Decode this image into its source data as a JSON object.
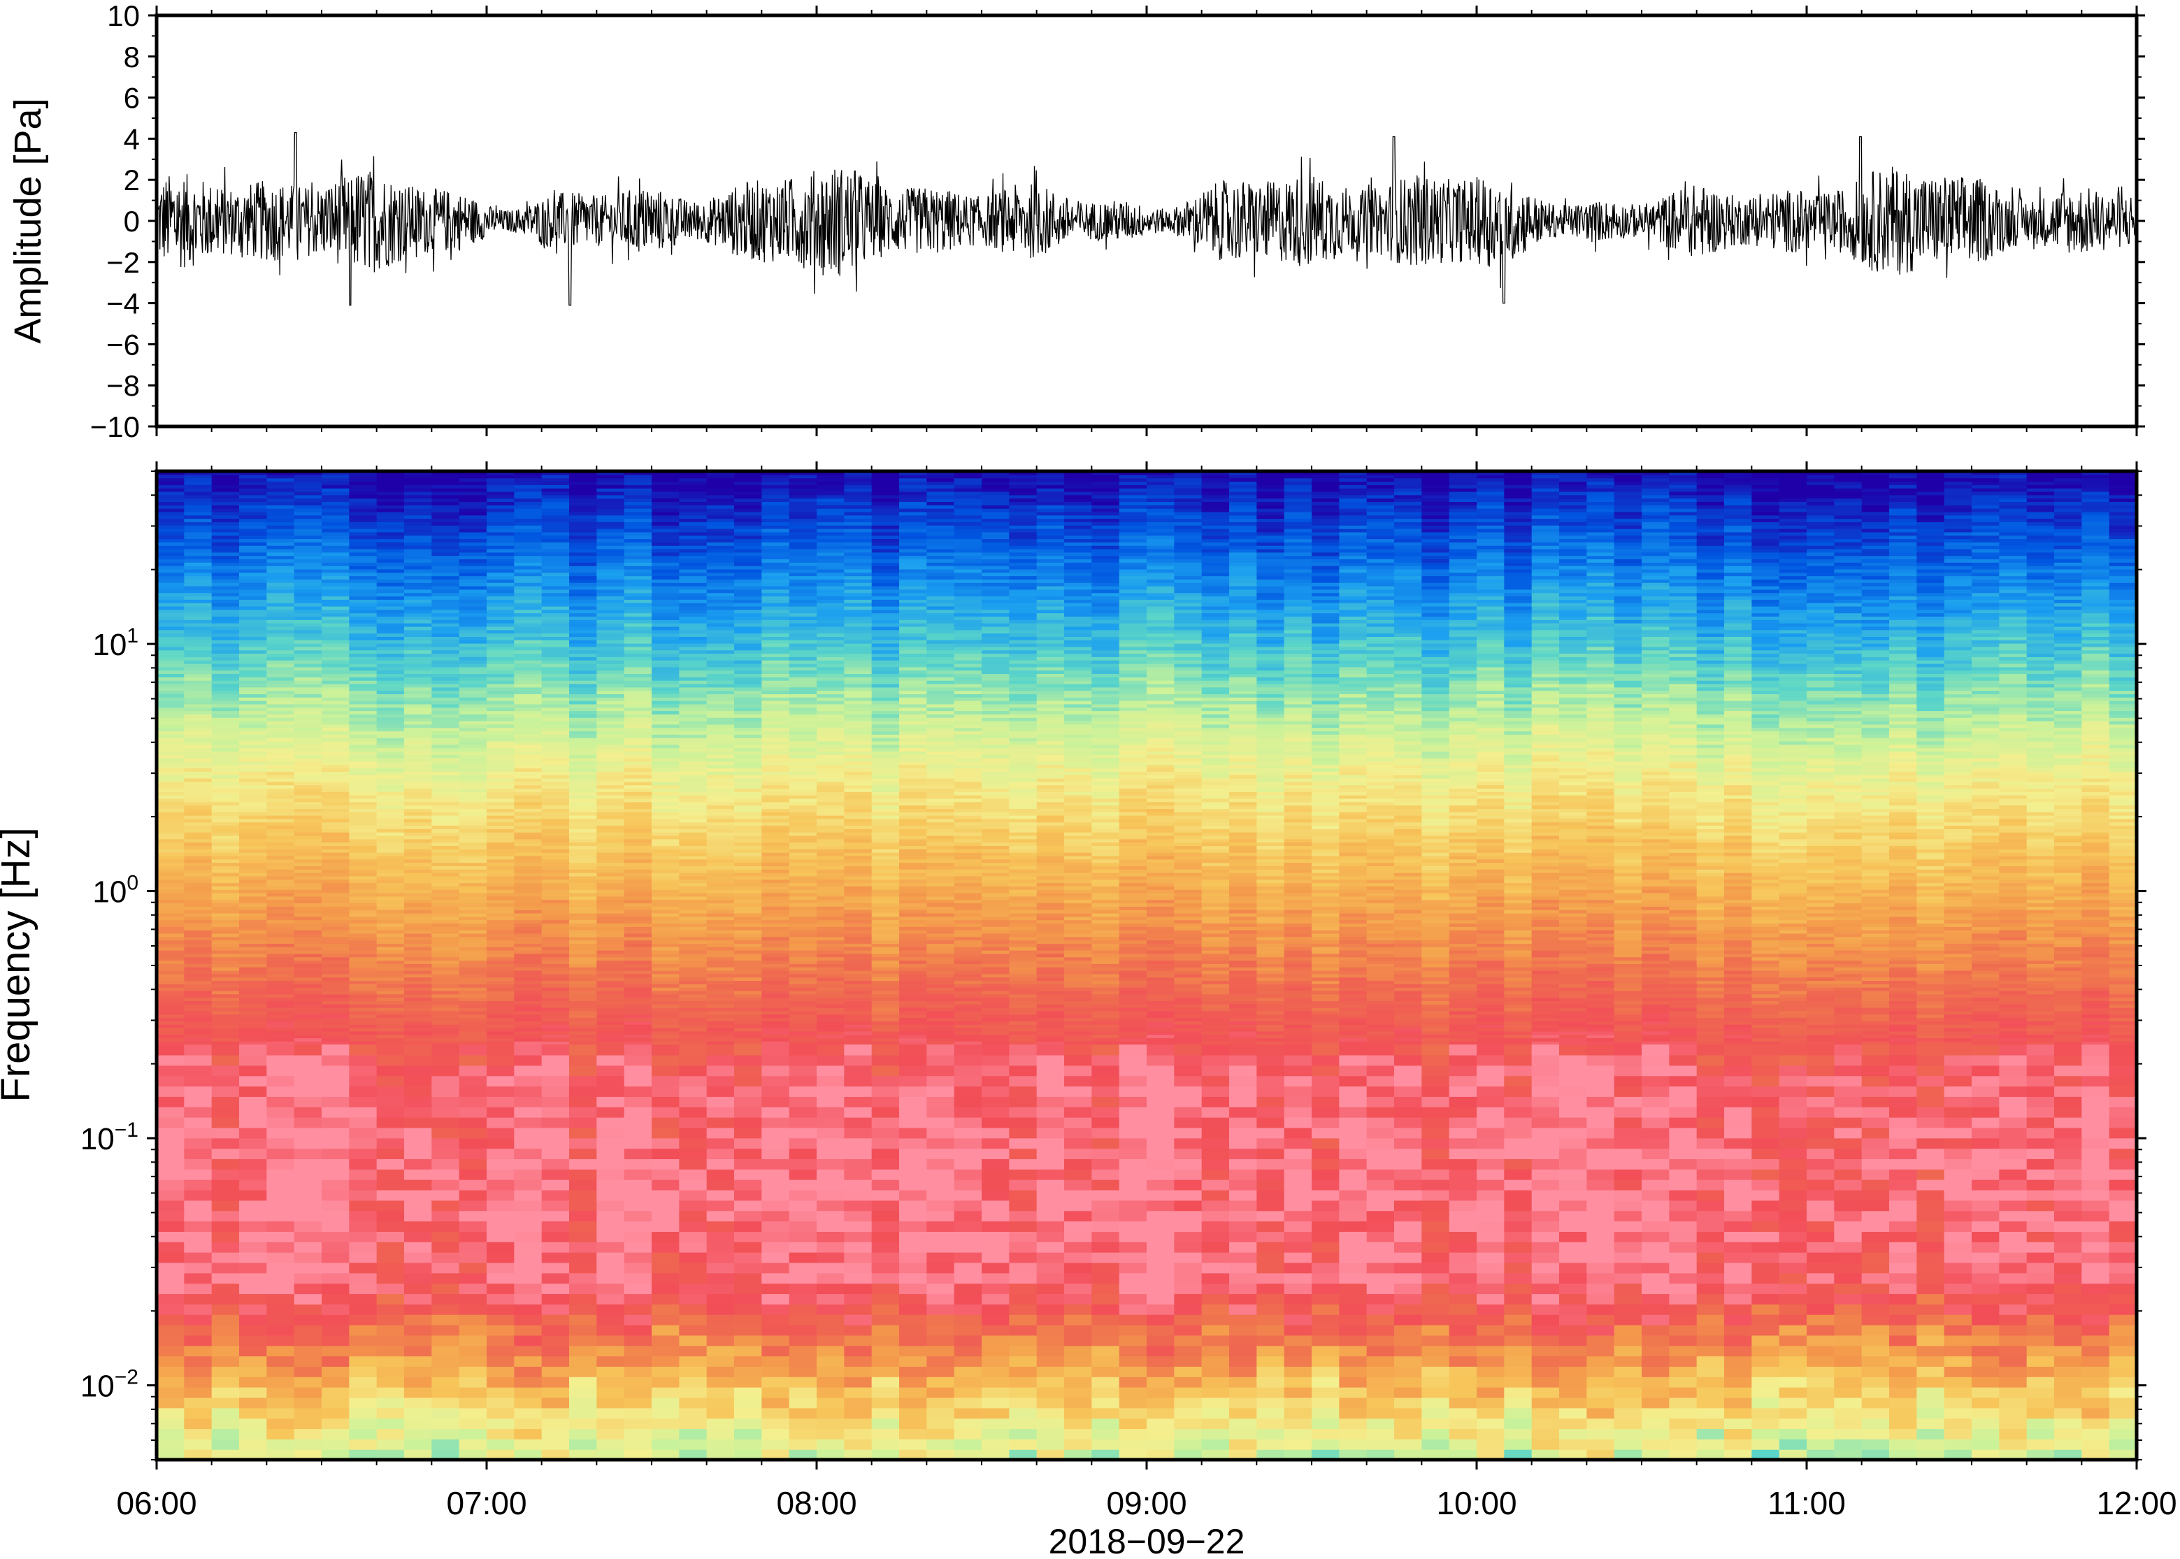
{
  "chart_data": [
    {
      "type": "line",
      "ylabel": "Amplitude [Pa]",
      "ylim": [
        -10,
        10
      ],
      "y_ticks": [
        "10",
        "8",
        "6",
        "4",
        "2",
        "0",
        "−2",
        "−4",
        "−6",
        "−8",
        "−10"
      ],
      "x_range": [
        "06:00",
        "12:00"
      ],
      "series": [
        {
          "description": "noisy waveform centered at 0",
          "typical_amplitude_range": [
            -2,
            2
          ],
          "max_abs_values": [
            {
              "time": "06:25",
              "value": 4.3
            },
            {
              "time": "06:35",
              "value": -4.1
            },
            {
              "time": "07:15",
              "value": -4.1
            },
            {
              "time": "09:45",
              "value": 4.1
            },
            {
              "time": "10:05",
              "value": -4.0
            },
            {
              "time": "11:10",
              "value": 4.1
            }
          ]
        }
      ]
    },
    {
      "type": "heatmap",
      "ylabel": "Frequency [Hz]",
      "y_scale": "log",
      "ylim": [
        0.005,
        50
      ],
      "y_ticks": [
        {
          "base": "10",
          "exp": "1"
        },
        {
          "base": "10",
          "exp": "0"
        },
        {
          "base": "10",
          "exp": "−1"
        },
        {
          "base": "10",
          "exp": "−2"
        }
      ],
      "colormap": [
        "#1f00a8",
        "#0055e0",
        "#1a9ef0",
        "#5cd6c8",
        "#c9f29a",
        "#f4ef8f",
        "#f7c55a",
        "#f49c4c",
        "#ef6a50",
        "#f24e58",
        "#ff8fa0"
      ]
    }
  ],
  "xaxis": {
    "ticks": [
      "06:00",
      "07:00",
      "08:00",
      "09:00",
      "10:00",
      "11:00",
      "12:00"
    ],
    "date_label": "2018−09−22"
  }
}
